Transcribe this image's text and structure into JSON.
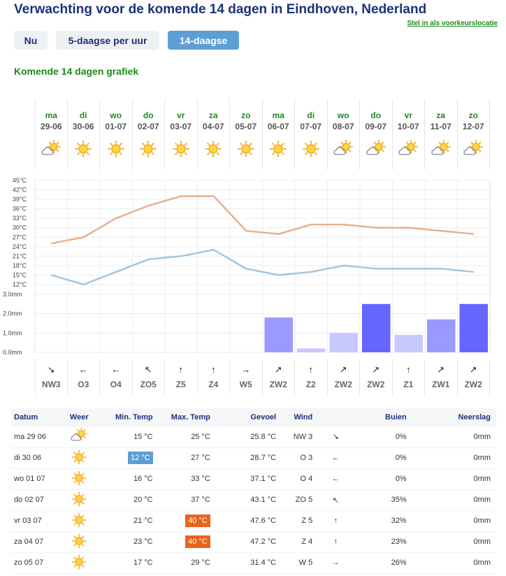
{
  "header": {
    "title": "Verwachting voor de komende 14 dagen in Eindhoven, Nederland",
    "pref_link": "Stel in als voorkeurslocatie"
  },
  "tabs": [
    {
      "label": "Nu",
      "active": false
    },
    {
      "label": "5-daagse per uur",
      "active": false
    },
    {
      "label": "14-daagse",
      "active": true
    }
  ],
  "subtitle": "Komende 14 dagen grafiek",
  "days": [
    {
      "name": "ma",
      "date": "29-06",
      "icon": "partly-cloudy-icon",
      "wind_arrow": "↘",
      "wind": "NW3"
    },
    {
      "name": "di",
      "date": "30-06",
      "icon": "sun-icon",
      "wind_arrow": "←",
      "wind": "O3"
    },
    {
      "name": "wo",
      "date": "01-07",
      "icon": "sun-icon",
      "wind_arrow": "←",
      "wind": "O4"
    },
    {
      "name": "do",
      "date": "02-07",
      "icon": "sun-icon",
      "wind_arrow": "↖",
      "wind": "ZO5"
    },
    {
      "name": "vr",
      "date": "03-07",
      "icon": "sun-icon",
      "wind_arrow": "↑",
      "wind": "Z5"
    },
    {
      "name": "za",
      "date": "04-07",
      "icon": "sun-icon",
      "wind_arrow": "↑",
      "wind": "Z4"
    },
    {
      "name": "zo",
      "date": "05-07",
      "icon": "sun-icon",
      "wind_arrow": "→",
      "wind": "W5"
    },
    {
      "name": "ma",
      "date": "06-07",
      "icon": "sun-icon",
      "wind_arrow": "↗",
      "wind": "ZW2"
    },
    {
      "name": "di",
      "date": "07-07",
      "icon": "sun-icon",
      "wind_arrow": "↑",
      "wind": "Z2"
    },
    {
      "name": "wo",
      "date": "08-07",
      "icon": "partly-cloudy-icon",
      "wind_arrow": "↗",
      "wind": "ZW2"
    },
    {
      "name": "do",
      "date": "09-07",
      "icon": "partly-cloudy-icon",
      "wind_arrow": "↗",
      "wind": "ZW2"
    },
    {
      "name": "vr",
      "date": "10-07",
      "icon": "partly-cloudy-icon",
      "wind_arrow": "↑",
      "wind": "Z1"
    },
    {
      "name": "za",
      "date": "11-07",
      "icon": "partly-cloudy-icon",
      "wind_arrow": "↗",
      "wind": "ZW1"
    },
    {
      "name": "zo",
      "date": "12-07",
      "icon": "partly-cloudy-icon",
      "wind_arrow": "↗",
      "wind": "ZW2"
    }
  ],
  "chart_data": {
    "type": "line",
    "temp_ticks": [
      "45°C",
      "42°C",
      "39°C",
      "36°C",
      "33°C",
      "30°C",
      "27°C",
      "24°C",
      "21°C",
      "18°C",
      "15°C",
      "12°C"
    ],
    "temp_range": [
      12,
      45
    ],
    "precip_ticks": [
      "3.0mm",
      "2.0mm",
      "1.0mm",
      "0.0mm"
    ],
    "precip_range": [
      0,
      3
    ],
    "grid": true,
    "series": [
      {
        "values": [
          25,
          27,
          33,
          37,
          40,
          40,
          29,
          28,
          31,
          31,
          30,
          30,
          29,
          28
        ],
        "color": "#e8b08e"
      },
      {
        "values": [
          15,
          12,
          16,
          20,
          21,
          23,
          17,
          15,
          16,
          18,
          17,
          17,
          17,
          16
        ],
        "color": "#a3c6e0"
      }
    ],
    "precipitation": [
      0,
      0,
      0,
      0,
      0,
      0,
      0,
      1.8,
      0.2,
      1.0,
      2.5,
      0.9,
      1.7,
      2.5
    ]
  },
  "table": {
    "headers": {
      "date": "Datum",
      "weather": "Weer",
      "min": "Min. Temp",
      "max": "Max. Temp",
      "feel": "Gevoel",
      "wind": "Wind",
      "showers": "Buien",
      "precip": "Neerslag"
    },
    "rows": [
      {
        "date": "ma 29 06",
        "icon": "partly-cloudy-icon",
        "min": "15 °C",
        "max": "25 °C",
        "feel": "25.8 °C",
        "wind": "NW 3",
        "arrow": "↘",
        "showers": "0%",
        "precip": "0mm",
        "min_hl": "",
        "max_hl": ""
      },
      {
        "date": "di 30 06",
        "icon": "sun-icon",
        "min": "12 °C",
        "max": "27 °C",
        "feel": "28.7 °C",
        "wind": "O 3",
        "arrow": "←",
        "showers": "0%",
        "precip": "0mm",
        "min_hl": "hl-blue",
        "max_hl": ""
      },
      {
        "date": "wo 01 07",
        "icon": "sun-icon",
        "min": "16 °C",
        "max": "33 °C",
        "feel": "37.1 °C",
        "wind": "O 4",
        "arrow": "←",
        "showers": "0%",
        "precip": "0mm",
        "min_hl": "",
        "max_hl": ""
      },
      {
        "date": "do 02 07",
        "icon": "sun-icon",
        "min": "20 °C",
        "max": "37 °C",
        "feel": "43.1 °C",
        "wind": "ZO 5",
        "arrow": "↖",
        "showers": "35%",
        "precip": "0mm",
        "min_hl": "",
        "max_hl": ""
      },
      {
        "date": "vr 03 07",
        "icon": "sun-icon",
        "min": "21 °C",
        "max": "40 °C",
        "feel": "47.6 °C",
        "wind": "Z 5",
        "arrow": "↑",
        "showers": "32%",
        "precip": "0mm",
        "min_hl": "",
        "max_hl": "hl-orange"
      },
      {
        "date": "za 04 07",
        "icon": "sun-icon",
        "min": "23 °C",
        "max": "40 °C",
        "feel": "47.2 °C",
        "wind": "Z 4",
        "arrow": "↑",
        "showers": "23%",
        "precip": "0mm",
        "min_hl": "",
        "max_hl": "hl-orange"
      },
      {
        "date": "zo 05 07",
        "icon": "sun-icon",
        "min": "17 °C",
        "max": "29 °C",
        "feel": "31.4 °C",
        "wind": "W 5",
        "arrow": "→",
        "showers": "26%",
        "precip": "0mm",
        "min_hl": "",
        "max_hl": ""
      }
    ]
  }
}
